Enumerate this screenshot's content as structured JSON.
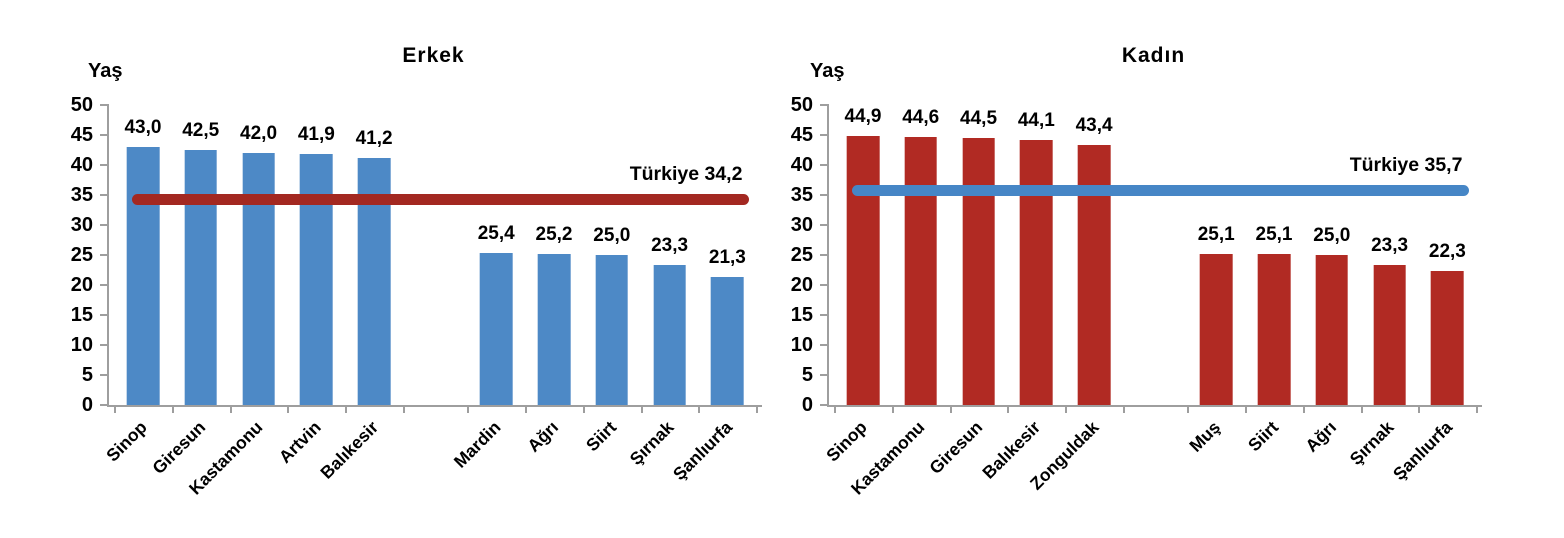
{
  "page": {
    "background": "#ffffff"
  },
  "chart_data": [
    {
      "type": "bar",
      "title": "Erkek",
      "ylabel": "Yaş",
      "categories": [
        "Sinop",
        "Giresun",
        "Kastamonu",
        "Artvin",
        "Balıkesir",
        "Mardin",
        "Ağrı",
        "Siirt",
        "Şırnak",
        "Şanlıurfa"
      ],
      "values": [
        43.0,
        42.5,
        42.0,
        41.9,
        41.2,
        25.4,
        25.2,
        25.0,
        23.3,
        21.3
      ],
      "value_labels": [
        "43,0",
        "42,5",
        "42,0",
        "41,9",
        "41,2",
        "25,4",
        "25,2",
        "25,0",
        "23,3",
        "21,3"
      ],
      "group_split_index": 5,
      "ylim": [
        0,
        50
      ],
      "yticks": [
        0,
        5,
        10,
        15,
        20,
        25,
        30,
        35,
        40,
        45,
        50
      ],
      "grid": false,
      "legend": "none",
      "bar_color": "#4d89c6",
      "reference_line": {
        "label": "Türkiye 34,2",
        "value": 34.2,
        "color": "#a32821"
      }
    },
    {
      "type": "bar",
      "title": "Kadın",
      "ylabel": "Yaş",
      "categories": [
        "Sinop",
        "Kastamonu",
        "Giresun",
        "Balıkesir",
        "Zonguldak",
        "Muş",
        "Siirt",
        "Ağrı",
        "Şırnak",
        "Şanlıurfa"
      ],
      "values": [
        44.9,
        44.6,
        44.5,
        44.1,
        43.4,
        25.1,
        25.1,
        25.0,
        23.3,
        22.3
      ],
      "value_labels": [
        "44,9",
        "44,6",
        "44,5",
        "44,1",
        "43,4",
        "25,1",
        "25,1",
        "25,0",
        "23,3",
        "22,3"
      ],
      "group_split_index": 5,
      "ylim": [
        0,
        50
      ],
      "yticks": [
        0,
        5,
        10,
        15,
        20,
        25,
        30,
        35,
        40,
        45,
        50
      ],
      "grid": false,
      "legend": "none",
      "bar_color": "#b12a23",
      "reference_line": {
        "label": "Türkiye 35,7",
        "value": 35.7,
        "color": "#4686c6"
      }
    }
  ]
}
